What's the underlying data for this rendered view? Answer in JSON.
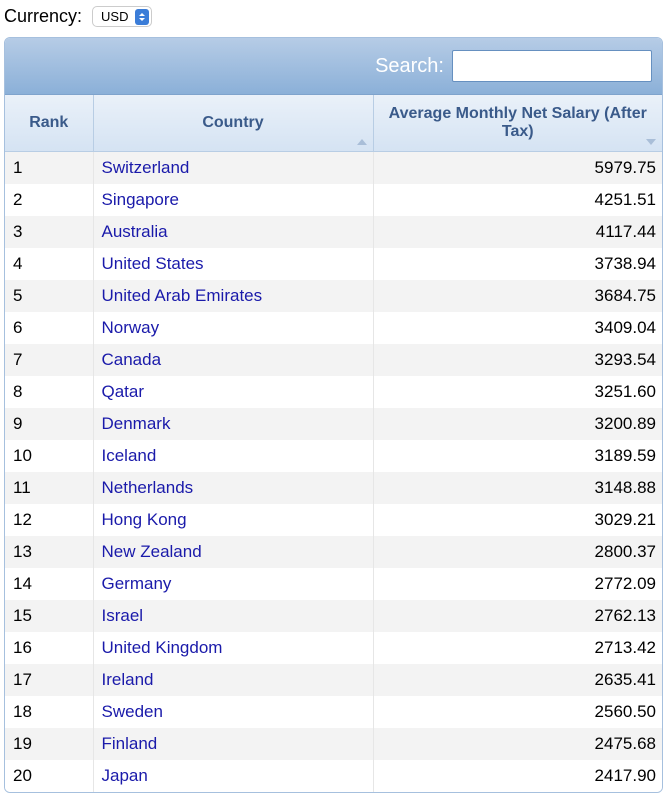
{
  "currency": {
    "label": "Currency:",
    "selected": "USD"
  },
  "search": {
    "label": "Search:",
    "value": ""
  },
  "table": {
    "columns": {
      "rank": "Rank",
      "country": "Country",
      "salary": "Average Monthly Net Salary (After Tax)"
    },
    "rows": [
      {
        "rank": "1",
        "country": "Switzerland",
        "salary": "5979.75"
      },
      {
        "rank": "2",
        "country": "Singapore",
        "salary": "4251.51"
      },
      {
        "rank": "3",
        "country": "Australia",
        "salary": "4117.44"
      },
      {
        "rank": "4",
        "country": "United States",
        "salary": "3738.94"
      },
      {
        "rank": "5",
        "country": "United Arab Emirates",
        "salary": "3684.75"
      },
      {
        "rank": "6",
        "country": "Norway",
        "salary": "3409.04"
      },
      {
        "rank": "7",
        "country": "Canada",
        "salary": "3293.54"
      },
      {
        "rank": "8",
        "country": "Qatar",
        "salary": "3251.60"
      },
      {
        "rank": "9",
        "country": "Denmark",
        "salary": "3200.89"
      },
      {
        "rank": "10",
        "country": "Iceland",
        "salary": "3189.59"
      },
      {
        "rank": "11",
        "country": "Netherlands",
        "salary": "3148.88"
      },
      {
        "rank": "12",
        "country": "Hong Kong",
        "salary": "3029.21"
      },
      {
        "rank": "13",
        "country": "New Zealand",
        "salary": "2800.37"
      },
      {
        "rank": "14",
        "country": "Germany",
        "salary": "2772.09"
      },
      {
        "rank": "15",
        "country": "Israel",
        "salary": "2762.13"
      },
      {
        "rank": "16",
        "country": "United Kingdom",
        "salary": "2713.42"
      },
      {
        "rank": "17",
        "country": "Ireland",
        "salary": "2635.41"
      },
      {
        "rank": "18",
        "country": "Sweden",
        "salary": "2560.50"
      },
      {
        "rank": "19",
        "country": "Finland",
        "salary": "2475.68"
      },
      {
        "rank": "20",
        "country": "Japan",
        "salary": "2417.90"
      }
    ]
  },
  "colors": {
    "header_gradient_top": "#b6cce6",
    "header_gradient_bottom": "#8bb0d8",
    "th_gradient_top": "#eaf1f9",
    "th_gradient_bottom": "#d5e3f3",
    "th_text": "#3a5a8a",
    "link": "#1a1aaa",
    "row_odd": "#f3f3f3",
    "row_even": "#ffffff",
    "border": "#a6c0de"
  }
}
